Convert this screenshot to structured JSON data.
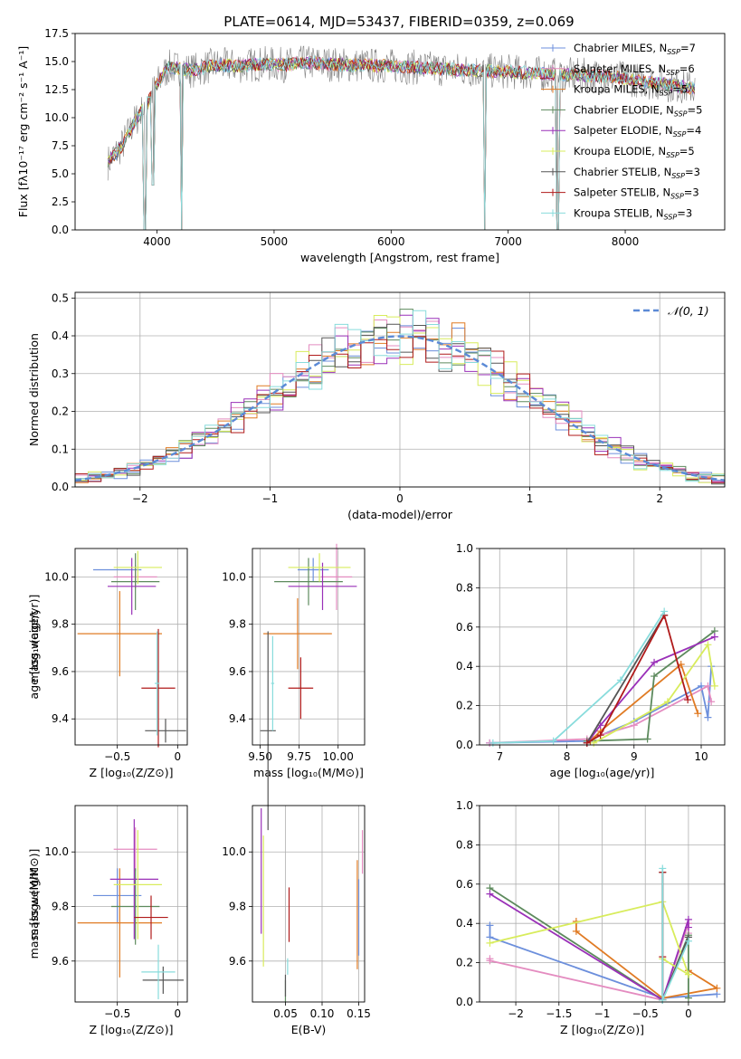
{
  "figure_title": "PLATE=0614, MJD=53437, FIBERID=0359, z=0.069",
  "colors": {
    "chabrier_miles": "#6c8fdc",
    "salpeter_miles": "#e48cc0",
    "kroupa_miles": "#e07b24",
    "chabrier_elodie": "#5d8a5d",
    "salpeter_elodie": "#9a30b8",
    "kroupa_elodie": "#d8ec5c",
    "chabrier_stelib": "#555555",
    "salpeter_stelib": "#b01a1a",
    "kroupa_stelib": "#88dcdc",
    "data": "#808080",
    "normal": "#5b8ad6",
    "grid": "#b0b0b0"
  },
  "chart_data": [
    {
      "type": "line",
      "title": "PLATE=0614, MJD=53437, FIBERID=0359, z=0.069",
      "xlabel": "wavelength [Angstrom, rest frame]",
      "ylabel": "Flux [fλ10⁻¹⁷ erg cm⁻² s⁻¹ A⁻¹]",
      "xlim": [
        3300,
        8850
      ],
      "ylim": [
        0,
        17.5
      ],
      "xticks": [
        4000,
        5000,
        6000,
        7000,
        8000
      ],
      "yticks": [
        0.0,
        2.5,
        5.0,
        7.5,
        10.0,
        12.5,
        15.0,
        17.5
      ],
      "grid": false,
      "legend_position": "right",
      "legend": [
        {
          "label": "Chabrier MILES, N",
          "sub": "SSP",
          "suffix": "=7",
          "color_key": "chabrier_miles"
        },
        {
          "label": "Salpeter MILES, N",
          "sub": "SSP",
          "suffix": "=6",
          "color_key": "salpeter_miles"
        },
        {
          "label": "Kroupa MILES, N",
          "sub": "SSP",
          "suffix": "=5",
          "color_key": "kroupa_miles"
        },
        {
          "label": "Chabrier ELODIE, N",
          "sub": "SSP",
          "suffix": "=5",
          "color_key": "chabrier_elodie"
        },
        {
          "label": "Salpeter ELODIE, N",
          "sub": "SSP",
          "suffix": "=4",
          "color_key": "salpeter_elodie"
        },
        {
          "label": "Kroupa ELODIE, N",
          "sub": "SSP",
          "suffix": "=5",
          "color_key": "kroupa_elodie"
        },
        {
          "label": "Chabrier STELIB, N",
          "sub": "SSP",
          "suffix": "=3",
          "color_key": "chabrier_stelib"
        },
        {
          "label": "Salpeter STELIB, N",
          "sub": "SSP",
          "suffix": "=3",
          "color_key": "salpeter_stelib"
        },
        {
          "label": "Kroupa STELIB, N",
          "sub": "SSP",
          "suffix": "=3",
          "color_key": "kroupa_stelib"
        }
      ],
      "continuum": {
        "x": [
          3580,
          3700,
          3800,
          3900,
          4000,
          4100,
          4300,
          4500,
          4700,
          4900,
          5100,
          5300,
          5600,
          6000,
          6500,
          7000,
          7500,
          7800,
          8000,
          8200,
          8400,
          8600
        ],
        "y": [
          6.0,
          7.5,
          9.5,
          11.0,
          13.0,
          14.5,
          14.2,
          14.7,
          14.6,
          14.8,
          14.7,
          14.9,
          14.7,
          14.6,
          14.3,
          14.1,
          13.8,
          13.7,
          13.5,
          13.2,
          12.9,
          12.6
        ]
      },
      "absorption_lines": [
        {
          "x": 3900,
          "y": 0.0
        },
        {
          "x": 3970,
          "y": 4.0
        },
        {
          "x": 4210,
          "y": 0.0
        },
        {
          "x": 6800,
          "y": 0.0
        },
        {
          "x": 7420,
          "y": 0.0
        }
      ]
    },
    {
      "type": "bar",
      "subtype": "step-histogram",
      "xlabel": "(data-model)/error",
      "ylabel": "Normed distribution",
      "xlim": [
        -2.5,
        2.5
      ],
      "ylim": [
        0,
        0.515
      ],
      "xticks": [
        -2,
        -1,
        0,
        1,
        2
      ],
      "yticks": [
        0.0,
        0.1,
        0.2,
        0.3,
        0.4,
        0.5
      ],
      "grid": true,
      "legend_position": "top-right",
      "legend": [
        {
          "label": "𝒩(0, 1)",
          "style": "dashed",
          "color_key": "normal"
        }
      ],
      "bin_edges_range": [
        -2.5,
        2.5
      ],
      "n_bins": 50,
      "series_noise_amplitude": 0.05
    },
    {
      "type": "scatter",
      "subtype": "errorbar",
      "xlabel": "Z [log₁₀(Z/Z⊙)]",
      "ylabel": "age  [log₁₀(age/yr)]",
      "xlim": [
        -0.85,
        0.08
      ],
      "ylim": [
        9.29,
        10.12
      ],
      "xticks": [
        -0.5,
        0.0
      ],
      "yticks": [
        9.4,
        9.6,
        9.8,
        10.0
      ],
      "grid": true,
      "points": [
        {
          "x": -0.5,
          "y": 10.03,
          "xerr": 0.2,
          "yerr": 0.0,
          "color_key": "chabrier_miles"
        },
        {
          "x": -0.35,
          "y": 10.0,
          "xerr": 0.18,
          "yerr": 0.05,
          "color_key": "salpeter_miles"
        },
        {
          "x": -0.48,
          "y": 9.76,
          "xerr": 0.35,
          "yerr": 0.18,
          "color_key": "kroupa_miles"
        },
        {
          "x": -0.35,
          "y": 9.98,
          "xerr": 0.2,
          "yerr": 0.12,
          "color_key": "chabrier_elodie"
        },
        {
          "x": -0.38,
          "y": 9.96,
          "xerr": 0.2,
          "yerr": 0.12,
          "color_key": "salpeter_elodie"
        },
        {
          "x": -0.33,
          "y": 10.04,
          "xerr": 0.2,
          "yerr": 0.07,
          "color_key": "kroupa_elodie"
        },
        {
          "x": -0.1,
          "y": 9.35,
          "xerr": 0.17,
          "yerr": 0.05,
          "color_key": "chabrier_stelib"
        },
        {
          "x": -0.16,
          "y": 9.53,
          "xerr": 0.14,
          "yerr": 0.25,
          "color_key": "salpeter_stelib"
        },
        {
          "x": -0.17,
          "y": 9.55,
          "xerr": 0.02,
          "yerr": 0.22,
          "color_key": "kroupa_stelib"
        }
      ]
    },
    {
      "type": "scatter",
      "subtype": "errorbar",
      "xlabel": "mass [log₁₀(M/M⊙)]",
      "ylabel": "",
      "xlim": [
        9.45,
        10.17
      ],
      "ylim": [
        9.29,
        10.12
      ],
      "xticks": [
        9.5,
        9.75,
        10.0
      ],
      "xtick_labels": [
        "9.50",
        "9.75",
        "10.00"
      ],
      "yticks": [
        9.4,
        9.6,
        9.8,
        10.0
      ],
      "grid": true,
      "points": [
        {
          "x": 9.84,
          "y": 10.03,
          "xerr": 0.1,
          "yerr": 0.05,
          "color_key": "chabrier_miles"
        },
        {
          "x": 9.99,
          "y": 10.0,
          "xerr": 0.1,
          "yerr": 0.14,
          "color_key": "salpeter_miles"
        },
        {
          "x": 9.74,
          "y": 9.76,
          "xerr": 0.22,
          "yerr": 0.15,
          "color_key": "kroupa_miles"
        },
        {
          "x": 9.81,
          "y": 9.98,
          "xerr": 0.22,
          "yerr": 0.1,
          "color_key": "chabrier_elodie"
        },
        {
          "x": 9.9,
          "y": 9.96,
          "xerr": 0.22,
          "yerr": 0.1,
          "color_key": "salpeter_elodie"
        },
        {
          "x": 9.88,
          "y": 10.04,
          "xerr": 0.2,
          "yerr": 0.06,
          "color_key": "kroupa_elodie"
        },
        {
          "x": 9.55,
          "y": 9.35,
          "xerr": 0.05,
          "yerr": 0.42,
          "color_key": "chabrier_stelib"
        },
        {
          "x": 9.76,
          "y": 9.53,
          "xerr": 0.08,
          "yerr": 0.13,
          "color_key": "salpeter_stelib"
        },
        {
          "x": 9.58,
          "y": 9.55,
          "xerr": 0.01,
          "yerr": 0.2,
          "color_key": "kroupa_stelib"
        }
      ]
    },
    {
      "type": "line",
      "xlabel": "age  [log₁₀(age/yr)]",
      "ylabel": "mass weight",
      "xlim": [
        6.7,
        10.35
      ],
      "ylim": [
        0,
        1.0
      ],
      "xticks": [
        7,
        8,
        9,
        10
      ],
      "yticks": [
        0.0,
        0.2,
        0.4,
        0.6,
        0.8,
        1.0
      ],
      "grid": true,
      "series": [
        {
          "color_key": "chabrier_miles",
          "x": [
            6.85,
            8.3,
            9.0,
            10.0,
            10.1,
            10.15
          ],
          "y": [
            0.01,
            0.02,
            0.12,
            0.3,
            0.14,
            0.4
          ]
        },
        {
          "color_key": "salpeter_miles",
          "x": [
            6.85,
            8.3,
            9.0,
            10.1,
            10.15
          ],
          "y": [
            0.01,
            0.03,
            0.1,
            0.3,
            0.22
          ]
        },
        {
          "color_key": "kroupa_miles",
          "x": [
            8.35,
            8.5,
            9.7,
            9.95
          ],
          "y": [
            0.02,
            0.07,
            0.41,
            0.16
          ]
        },
        {
          "color_key": "chabrier_elodie",
          "x": [
            8.3,
            9.2,
            9.3,
            10.2
          ],
          "y": [
            0.02,
            0.03,
            0.35,
            0.58
          ]
        },
        {
          "color_key": "salpeter_elodie",
          "x": [
            8.3,
            8.5,
            9.3,
            10.2
          ],
          "y": [
            0.01,
            0.1,
            0.42,
            0.55
          ]
        },
        {
          "color_key": "kroupa_elodie",
          "x": [
            8.4,
            9.5,
            10.1,
            10.2
          ],
          "y": [
            0.01,
            0.22,
            0.51,
            0.3
          ]
        },
        {
          "color_key": "chabrier_stelib",
          "x": [
            8.3,
            9.45
          ],
          "y": [
            0.01,
            0.66
          ]
        },
        {
          "color_key": "salpeter_stelib",
          "x": [
            8.3,
            8.5,
            9.45,
            9.8
          ],
          "y": [
            0.01,
            0.05,
            0.66,
            0.23
          ]
        },
        {
          "color_key": "kroupa_stelib",
          "x": [
            6.9,
            7.8,
            8.8,
            9.45
          ],
          "y": [
            0.01,
            0.02,
            0.33,
            0.68
          ]
        }
      ]
    },
    {
      "type": "scatter",
      "subtype": "errorbar",
      "xlabel": "Z [log₁₀(Z/Z⊙)]",
      "ylabel": "mass [log₁₀(M/M⊙)]",
      "xlim": [
        -0.85,
        0.08
      ],
      "ylim": [
        9.45,
        10.17
      ],
      "xticks": [
        -0.5,
        0.0
      ],
      "yticks": [
        9.6,
        9.8,
        10.0
      ],
      "grid": true,
      "points": [
        {
          "x": -0.5,
          "y": 9.84,
          "xerr": 0.2,
          "yerr": 0.1,
          "color_key": "chabrier_miles"
        },
        {
          "x": -0.35,
          "y": 10.01,
          "xerr": 0.18,
          "yerr": 0.08,
          "color_key": "salpeter_miles"
        },
        {
          "x": -0.48,
          "y": 9.74,
          "xerr": 0.35,
          "yerr": 0.2,
          "color_key": "kroupa_miles"
        },
        {
          "x": -0.35,
          "y": 9.8,
          "xerr": 0.2,
          "yerr": 0.14,
          "color_key": "chabrier_elodie"
        },
        {
          "x": -0.36,
          "y": 9.9,
          "xerr": 0.2,
          "yerr": 0.22,
          "color_key": "salpeter_elodie"
        },
        {
          "x": -0.33,
          "y": 9.88,
          "xerr": 0.2,
          "yerr": 0.2,
          "color_key": "kroupa_elodie"
        },
        {
          "x": -0.12,
          "y": 9.53,
          "xerr": 0.17,
          "yerr": 0.05,
          "color_key": "chabrier_stelib"
        },
        {
          "x": -0.22,
          "y": 9.76,
          "xerr": 0.14,
          "yerr": 0.08,
          "color_key": "salpeter_stelib"
        },
        {
          "x": -0.16,
          "y": 9.56,
          "xerr": 0.14,
          "yerr": 0.1,
          "color_key": "kroupa_stelib"
        }
      ]
    },
    {
      "type": "scatter",
      "subtype": "errorbar",
      "xlabel": "E(B-V)",
      "ylabel": "",
      "xlim": [
        0.005,
        0.158
      ],
      "ylim": [
        9.45,
        10.17
      ],
      "xticks": [
        0.05,
        0.1,
        0.15
      ],
      "xtick_labels": [
        "0.05",
        "0.10",
        "0.15"
      ],
      "yticks": [
        9.6,
        9.8,
        10.0
      ],
      "grid": true,
      "points": [
        {
          "x": 0.15,
          "y": 9.76,
          "xerr": 0.0,
          "yerr": 0.14,
          "color_key": "chabrier_miles"
        },
        {
          "x": 0.155,
          "y": 10.0,
          "xerr": 0.0,
          "yerr": 0.08,
          "color_key": "salpeter_miles"
        },
        {
          "x": 0.148,
          "y": 9.77,
          "xerr": 0.0,
          "yerr": 0.2,
          "color_key": "kroupa_miles"
        },
        {
          "x": 0.05,
          "y": 9.49,
          "xerr": 0.0,
          "yerr": 0.04,
          "color_key": "chabrier_elodie"
        },
        {
          "x": 0.017,
          "y": 9.93,
          "xerr": 0.0,
          "yerr": 0.23,
          "color_key": "salpeter_elodie"
        },
        {
          "x": 0.02,
          "y": 9.82,
          "xerr": 0.0,
          "yerr": 0.24,
          "color_key": "kroupa_elodie"
        },
        {
          "x": 0.05,
          "y": 9.51,
          "xerr": 0.0,
          "yerr": 0.04,
          "color_key": "chabrier_stelib"
        },
        {
          "x": 0.055,
          "y": 9.77,
          "xerr": 0.0,
          "yerr": 0.1,
          "color_key": "salpeter_stelib"
        },
        {
          "x": 0.053,
          "y": 9.58,
          "xerr": 0.0,
          "yerr": 0.03,
          "color_key": "kroupa_stelib"
        }
      ]
    },
    {
      "type": "line",
      "xlabel": "Z [log₁₀(Z/Z⊙)]",
      "ylabel": "mass weight",
      "xlim": [
        -2.42,
        0.42
      ],
      "ylim": [
        0,
        1.0
      ],
      "xticks": [
        -2.0,
        -1.5,
        -1.0,
        -0.5,
        0.0
      ],
      "yticks": [
        0.0,
        0.2,
        0.4,
        0.6,
        0.8,
        1.0
      ],
      "grid": true,
      "series": [
        {
          "color_key": "chabrier_miles",
          "x": [
            -2.3,
            -2.3,
            -0.3,
            0.33,
            -0.3
          ],
          "y": [
            0.39,
            0.33,
            0.02,
            0.04,
            0.02
          ]
        },
        {
          "color_key": "salpeter_miles",
          "x": [
            -2.3,
            -2.3,
            -0.3,
            0.0,
            0.0
          ],
          "y": [
            0.22,
            0.21,
            0.01,
            0.4,
            0.35
          ]
        },
        {
          "color_key": "kroupa_miles",
          "x": [
            -1.3,
            -1.3,
            -0.3,
            0.33,
            0.0
          ],
          "y": [
            0.41,
            0.36,
            0.02,
            0.07,
            0.16
          ]
        },
        {
          "color_key": "chabrier_elodie",
          "x": [
            -2.3,
            -0.3,
            0.0,
            0.0
          ],
          "y": [
            0.58,
            0.01,
            0.34,
            0.02
          ]
        },
        {
          "color_key": "salpeter_elodie",
          "x": [
            -2.3,
            -0.3,
            0.0,
            0.0
          ],
          "y": [
            0.55,
            0.01,
            0.42,
            0.38
          ]
        },
        {
          "color_key": "kroupa_elodie",
          "x": [
            -2.3,
            -0.3,
            0.0,
            -0.3
          ],
          "y": [
            0.3,
            0.51,
            0.14,
            0.22
          ]
        },
        {
          "color_key": "chabrier_stelib",
          "x": [
            -0.3,
            -0.3,
            0.0,
            -0.3
          ],
          "y": [
            0.66,
            0.01,
            0.33,
            0.01
          ]
        },
        {
          "color_key": "salpeter_stelib",
          "x": [
            -0.3,
            -0.3,
            -0.3,
            -0.3
          ],
          "y": [
            0.66,
            0.01,
            0.23,
            0.01
          ]
        },
        {
          "color_key": "kroupa_stelib",
          "x": [
            -0.3,
            -0.3,
            0.0,
            -0.3
          ],
          "y": [
            0.68,
            0.01,
            0.31,
            0.01
          ]
        }
      ]
    }
  ]
}
